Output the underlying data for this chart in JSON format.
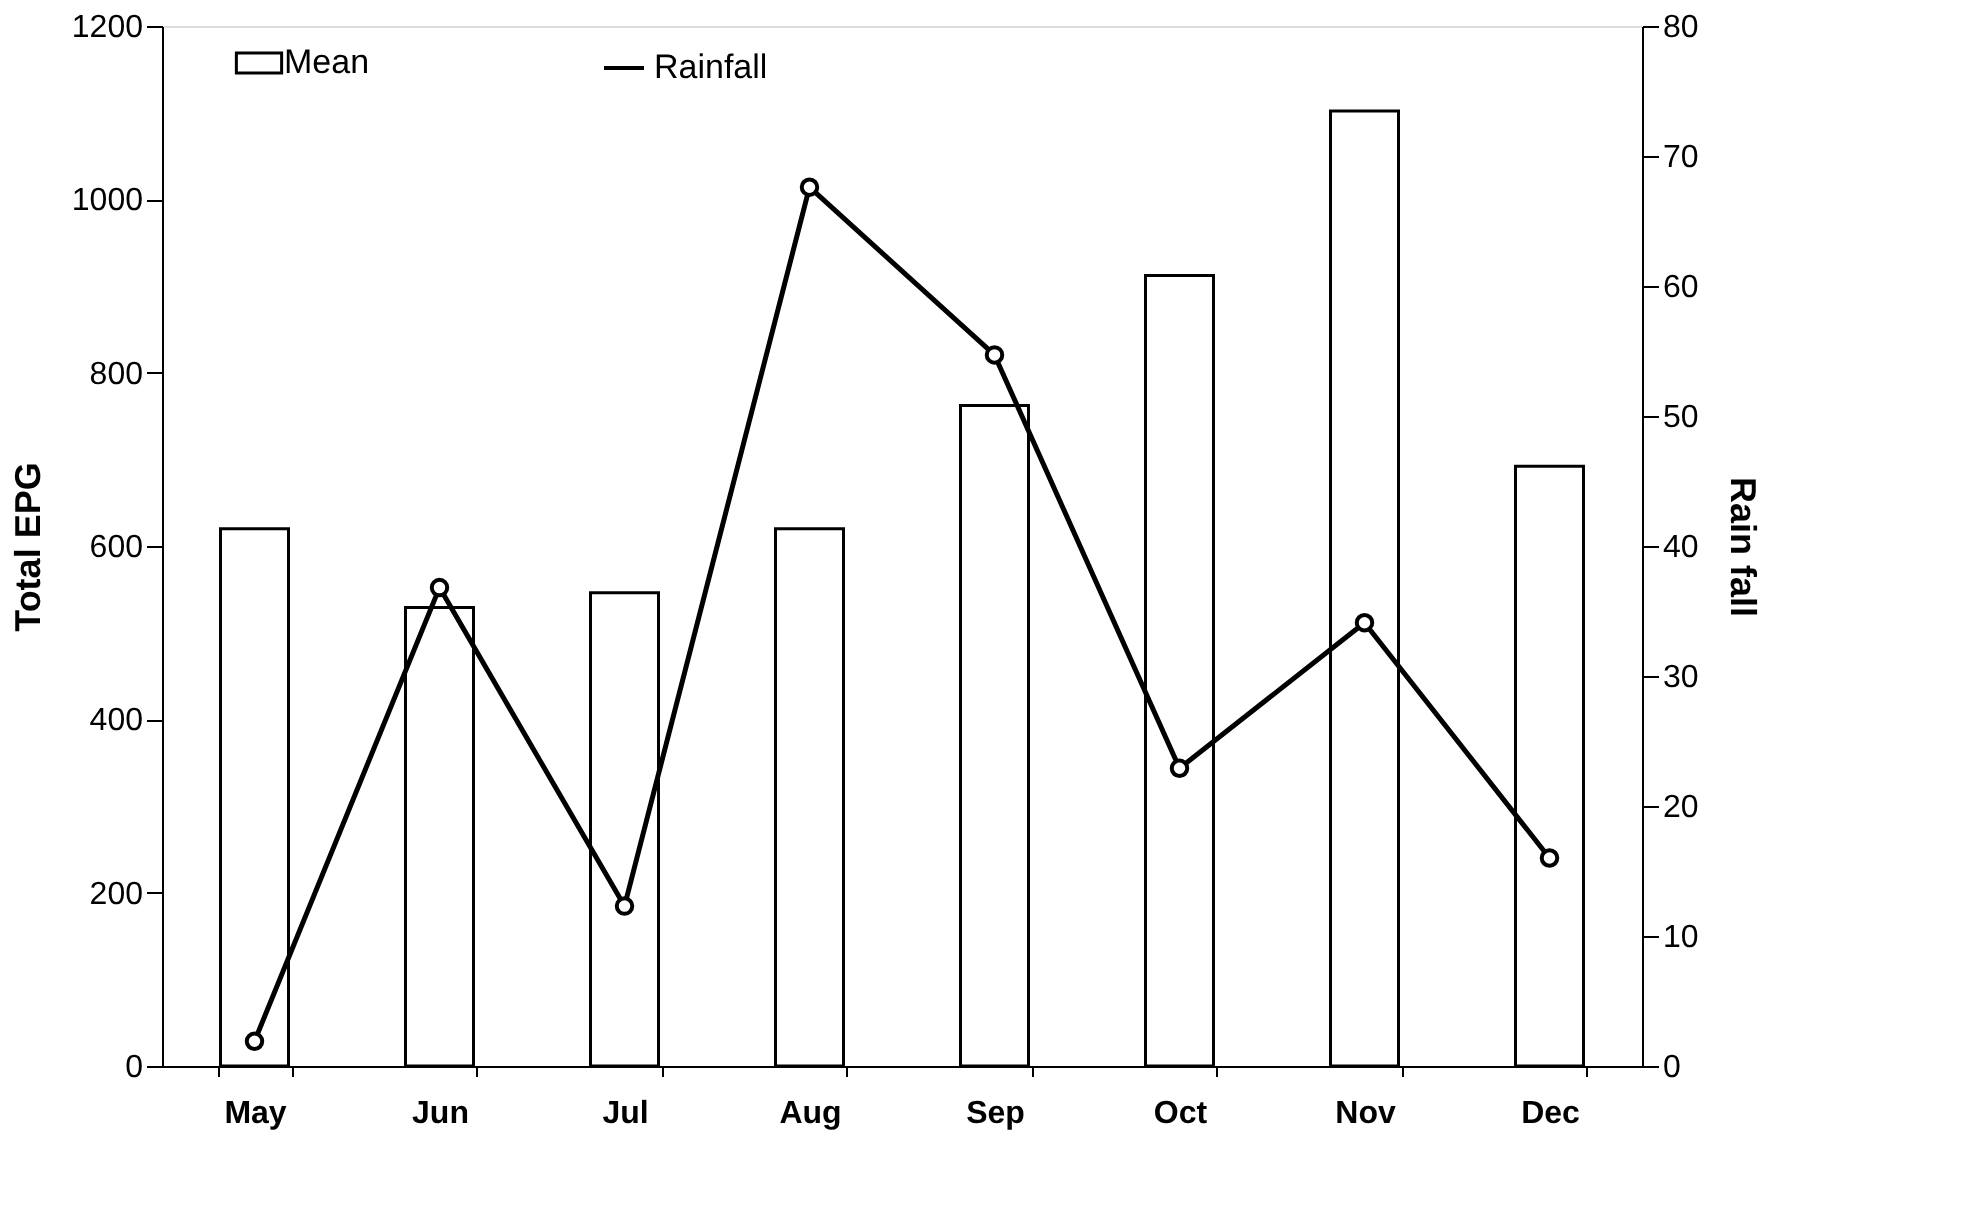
{
  "chart_data": {
    "type": "bar",
    "categories": [
      "May",
      "Jun",
      "Jul",
      "Aug",
      "Sep",
      "Oct",
      "Nov",
      "Dec"
    ],
    "ylabel": "Total EPG",
    "y2label": "Rain fall",
    "ylim": [
      0,
      1200
    ],
    "yticks": [
      0,
      200,
      400,
      600,
      800,
      1000,
      1200
    ],
    "y2lim": [
      0,
      80
    ],
    "y2ticks": [
      0,
      10,
      20,
      30,
      40,
      50,
      60,
      70,
      80
    ],
    "grid": false,
    "legend": "top left",
    "series": [
      {
        "name": "Mean",
        "color": "#ffffff",
        "values": [
          620,
          529,
          546,
          620,
          762,
          912,
          1102,
          692
        ]
      },
      {
        "name": "Rainfall",
        "type": "line",
        "axis": "y2",
        "color": "#000000",
        "marker": "circle",
        "line_style": "solid",
        "values": [
          1.9,
          36.8,
          12.3,
          67.6,
          54.7,
          22.9,
          34.1,
          16.0
        ]
      }
    ]
  }
}
